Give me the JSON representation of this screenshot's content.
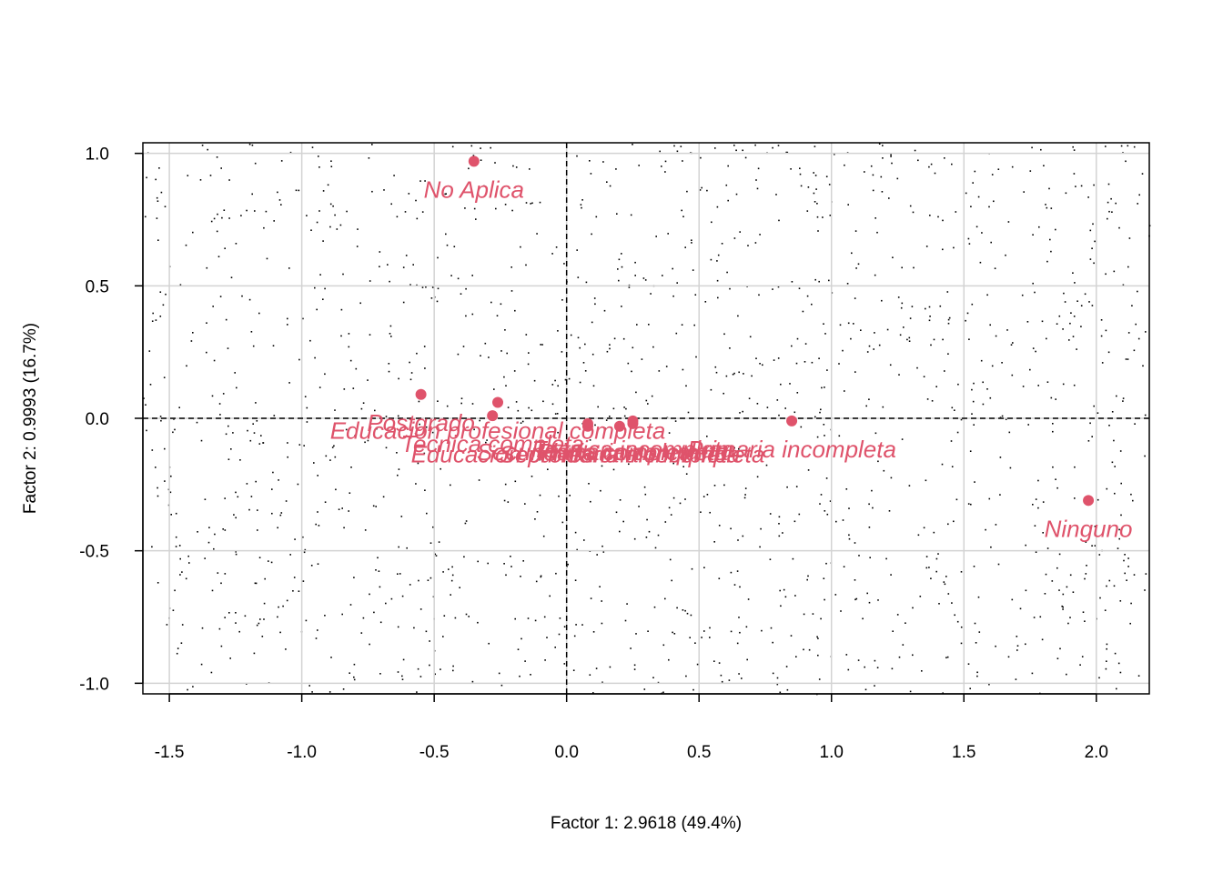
{
  "chart_data": {
    "type": "scatter",
    "title": "",
    "xlabel": "Factor 1: 2.9618 (49.4%)",
    "ylabel": "Factor 2: 0.9993 (16.7%)",
    "xlim": [
      -1.6,
      2.2
    ],
    "ylim": [
      -1.04,
      1.04
    ],
    "x_ticks": [
      -1.5,
      -1.0,
      -0.5,
      0.0,
      0.5,
      1.0,
      1.5,
      2.0
    ],
    "y_ticks": [
      -1.0,
      -0.5,
      0.0,
      0.5,
      1.0
    ],
    "x_tick_labels": [
      "-1.5",
      "-1.0",
      "-0.5",
      "0.0",
      "0.5",
      "1.0",
      "1.5",
      "2.0"
    ],
    "y_tick_labels": [
      "-1.0",
      "-0.5",
      "0.0",
      "0.5",
      "1.0"
    ],
    "grid": true,
    "reference_lines": {
      "x": 0,
      "y": 0,
      "style": "dashed"
    },
    "point_color": "#DF536B",
    "background_points": "dense field of small black points",
    "points": [
      {
        "label": "No Aplica",
        "x": -0.35,
        "y": 0.97
      },
      {
        "label": "Postgrado",
        "x": -0.55,
        "y": 0.09
      },
      {
        "label": "Educacion profesional completa",
        "x": -0.26,
        "y": 0.06
      },
      {
        "label": "Tecnica completa",
        "x": -0.28,
        "y": 0.01
      },
      {
        "label": "Secundaria completa",
        "x": 0.08,
        "y": -0.02
      },
      {
        "label": "Secundaria incompleta",
        "x": 0.2,
        "y": -0.03
      },
      {
        "label": "Tecnica incompleta",
        "x": 0.25,
        "y": -0.01
      },
      {
        "label": "Primaria completa",
        "x": 0.25,
        "y": -0.02
      },
      {
        "label": "Educacion profesional incompleta",
        "x": 0.08,
        "y": -0.03
      },
      {
        "label": "Primaria incompleta",
        "x": 0.85,
        "y": -0.01
      },
      {
        "label": "Ninguno",
        "x": 1.97,
        "y": -0.31
      }
    ]
  }
}
